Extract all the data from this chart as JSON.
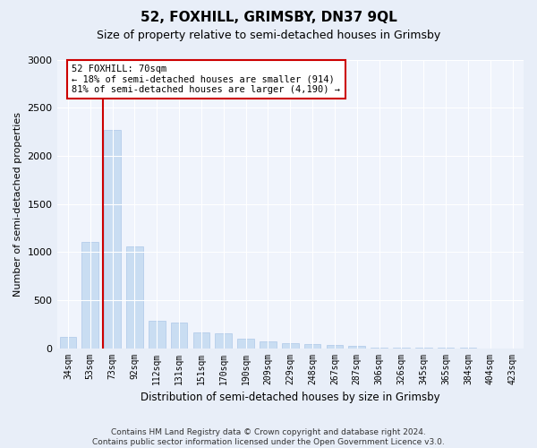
{
  "title": "52, FOXHILL, GRIMSBY, DN37 9QL",
  "subtitle": "Size of property relative to semi-detached houses in Grimsby",
  "xlabel": "Distribution of semi-detached houses by size in Grimsby",
  "ylabel": "Number of semi-detached properties",
  "categories": [
    "34sqm",
    "53sqm",
    "73sqm",
    "92sqm",
    "112sqm",
    "131sqm",
    "151sqm",
    "170sqm",
    "190sqm",
    "209sqm",
    "229sqm",
    "248sqm",
    "267sqm",
    "287sqm",
    "306sqm",
    "326sqm",
    "345sqm",
    "365sqm",
    "384sqm",
    "404sqm",
    "423sqm"
  ],
  "bar_values": [
    120,
    1100,
    2270,
    1060,
    280,
    270,
    165,
    155,
    100,
    70,
    55,
    45,
    30,
    20,
    8,
    4,
    2,
    1,
    1,
    0,
    0
  ],
  "bar_color": "#c9ddf2",
  "bar_edge_color": "#aec8e8",
  "vline_color": "#cc0000",
  "annotation_text": "52 FOXHILL: 70sqm\n← 18% of semi-detached houses are smaller (914)\n81% of semi-detached houses are larger (4,190) →",
  "annotation_box_color": "#ffffff",
  "annotation_box_edge": "#cc0000",
  "ylim": [
    0,
    3000
  ],
  "yticks": [
    0,
    500,
    1000,
    1500,
    2000,
    2500,
    3000
  ],
  "footer": "Contains HM Land Registry data © Crown copyright and database right 2024.\nContains public sector information licensed under the Open Government Licence v3.0.",
  "bg_color": "#e8eef8",
  "plot_bg_color": "#f0f4fc",
  "title_fontsize": 11,
  "subtitle_fontsize": 9,
  "bar_width": 0.75
}
